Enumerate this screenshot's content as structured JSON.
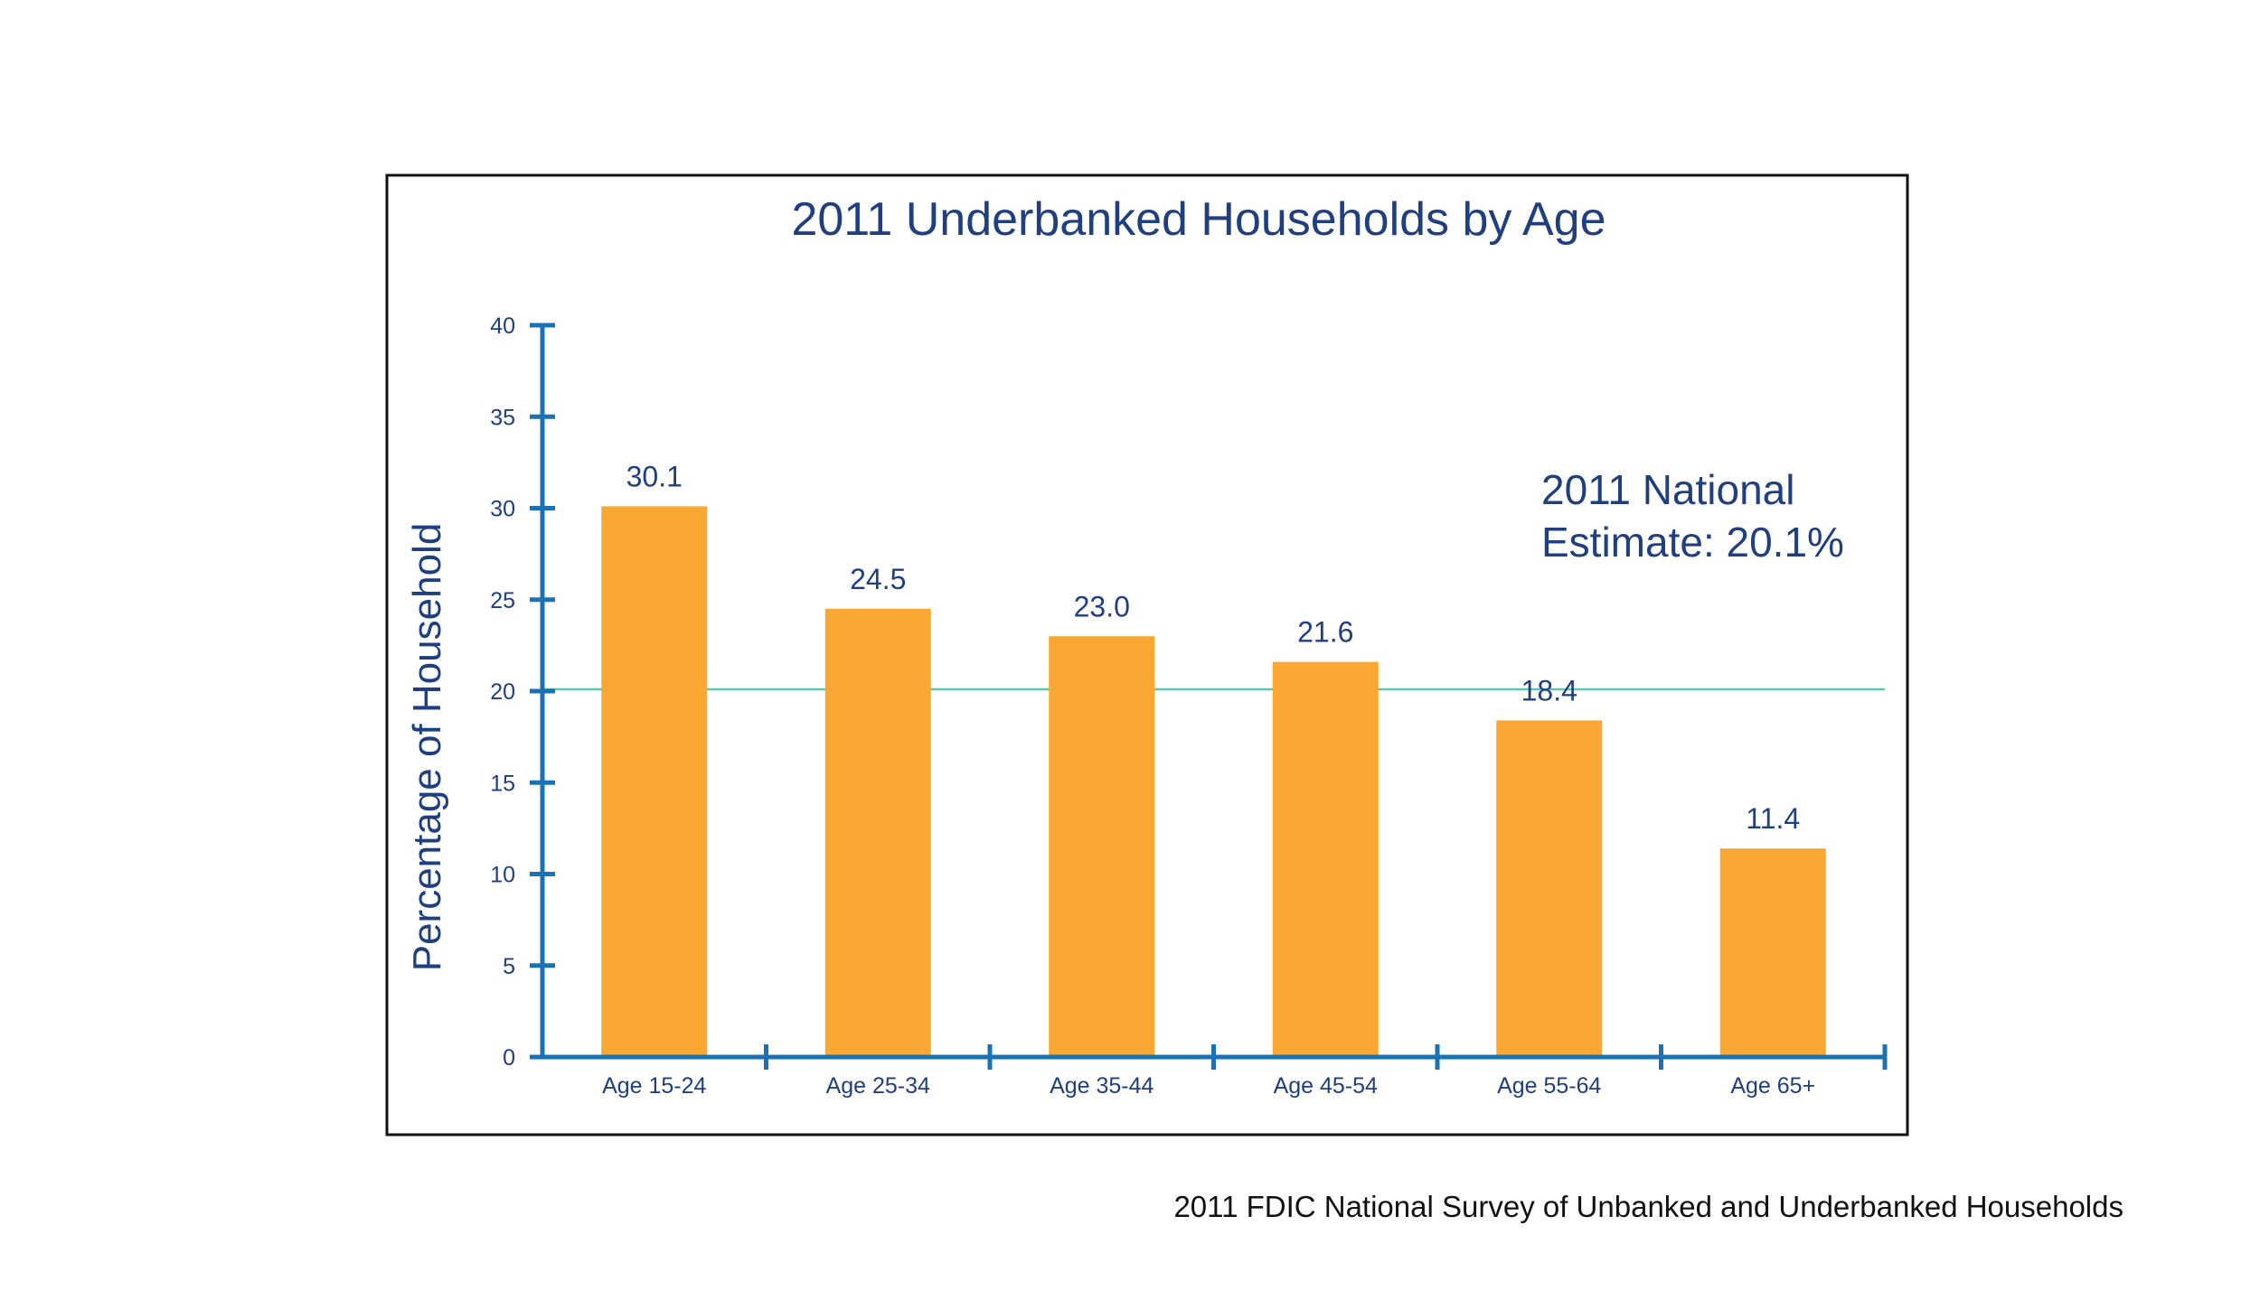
{
  "colors": {
    "bar": "#f8a832",
    "axis": "#1a72b4",
    "reference_line": "#5cc4b3",
    "text": "#1f3f7f",
    "frame": "#111111"
  },
  "source_note": "2011 FDIC National Survey of Unbanked and Underbanked Households",
  "chart_data": {
    "type": "bar",
    "title": "2011 Underbanked Households by Age",
    "xlabel": "",
    "ylabel": "Percentage of Household",
    "ylim": [
      0,
      40
    ],
    "yticks": [
      0,
      5,
      10,
      15,
      20,
      25,
      30,
      35,
      40
    ],
    "categories": [
      "Age 15-24",
      "Age 25-34",
      "Age 35-44",
      "Age 45-54",
      "Age 55-64",
      "Age 65+"
    ],
    "values": [
      30.1,
      24.5,
      23.0,
      21.6,
      18.4,
      11.4
    ],
    "data_labels": [
      "30.1",
      "24.5",
      "23.0",
      "21.6",
      "18.4",
      "11.4"
    ],
    "reference_line": {
      "value": 20.1,
      "annotation_lines": [
        "2011 National",
        "Estimate: 20.1%"
      ]
    },
    "grid": false,
    "legend": "none"
  }
}
